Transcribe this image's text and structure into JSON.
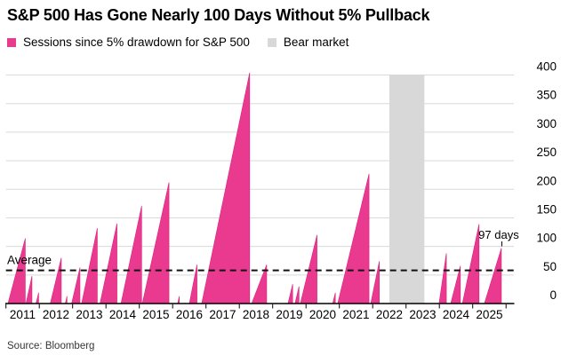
{
  "title": "S&P 500 Has Gone Nearly 100 Days Without 5% Pullback",
  "legend": [
    {
      "label": "Sessions since 5% drawdown for S&P 500",
      "color": "#e93a8f"
    },
    {
      "label": "Bear market",
      "color": "#d8d8d8"
    }
  ],
  "source": "Source: Bloomberg",
  "colors": {
    "series": "#e93a8f",
    "series_edge": "#d92280",
    "bear_band": "#d8d8d8",
    "grid": "#d9d9d9",
    "axis": "#000000",
    "average_line": "#111111",
    "text": "#000000"
  },
  "chart_data": {
    "type": "area",
    "title": "S&P 500 Has Gone Nearly 100 Days Without 5% Pullback",
    "series_name": "Sessions since 5% drawdown for S&P 500",
    "xlabel": "",
    "ylabel": "",
    "ylim": [
      0,
      425
    ],
    "yticks": [
      0,
      50,
      100,
      150,
      200,
      250,
      300,
      350,
      400
    ],
    "x_range": [
      2011,
      2026.25
    ],
    "x_tick_years": [
      2011,
      2012,
      2013,
      2014,
      2015,
      2016,
      2017,
      2018,
      2019,
      2020,
      2021,
      2022,
      2023,
      2024,
      2025,
      2026
    ],
    "x_tick_labels": [
      "2011",
      "2012",
      "2013",
      "2014",
      "2015",
      "2016",
      "2017",
      "2018",
      "2019",
      "2020",
      "2021",
      "2022",
      "2023",
      "2024",
      "2025"
    ],
    "grid": true,
    "legend_position": "top",
    "average": {
      "label": "Average",
      "value": 58
    },
    "bear_market": {
      "start": 2022.5,
      "end": 2023.55
    },
    "annotation": {
      "label": "97 days",
      "x": 2025.86,
      "value": 97
    },
    "spikes": [
      {
        "start": 2011.06,
        "end": 2011.58,
        "sessions": 114
      },
      {
        "start": 2011.6,
        "end": 2011.78,
        "sessions": 48
      },
      {
        "start": 2011.9,
        "end": 2011.98,
        "sessions": 19
      },
      {
        "start": 2012.33,
        "end": 2012.66,
        "sessions": 80
      },
      {
        "start": 2012.78,
        "end": 2012.83,
        "sessions": 13
      },
      {
        "start": 2012.97,
        "end": 2013.22,
        "sessions": 63
      },
      {
        "start": 2013.27,
        "end": 2013.74,
        "sessions": 132
      },
      {
        "start": 2013.82,
        "end": 2014.33,
        "sessions": 140
      },
      {
        "start": 2014.45,
        "end": 2015.07,
        "sessions": 171
      },
      {
        "start": 2015.09,
        "end": 2015.89,
        "sessions": 212
      },
      {
        "start": 2016.15,
        "end": 2016.2,
        "sessions": 13
      },
      {
        "start": 2016.5,
        "end": 2016.73,
        "sessions": 68
      },
      {
        "start": 2016.87,
        "end": 2018.31,
        "sessions": 404
      },
      {
        "start": 2018.37,
        "end": 2018.82,
        "sessions": 68
      },
      {
        "start": 2019.46,
        "end": 2019.6,
        "sessions": 34
      },
      {
        "start": 2019.67,
        "end": 2019.79,
        "sessions": 30
      },
      {
        "start": 2019.83,
        "end": 2020.33,
        "sessions": 120
      },
      {
        "start": 2020.8,
        "end": 2020.88,
        "sessions": 19
      },
      {
        "start": 2020.95,
        "end": 2021.89,
        "sessions": 227
      },
      {
        "start": 2021.94,
        "end": 2022.2,
        "sessions": 74
      },
      {
        "start": 2023.99,
        "end": 2024.21,
        "sessions": 88
      },
      {
        "start": 2024.34,
        "end": 2024.63,
        "sessions": 66
      },
      {
        "start": 2024.69,
        "end": 2025.19,
        "sessions": 139
      },
      {
        "start": 2025.35,
        "end": 2025.86,
        "sessions": 97
      }
    ]
  }
}
